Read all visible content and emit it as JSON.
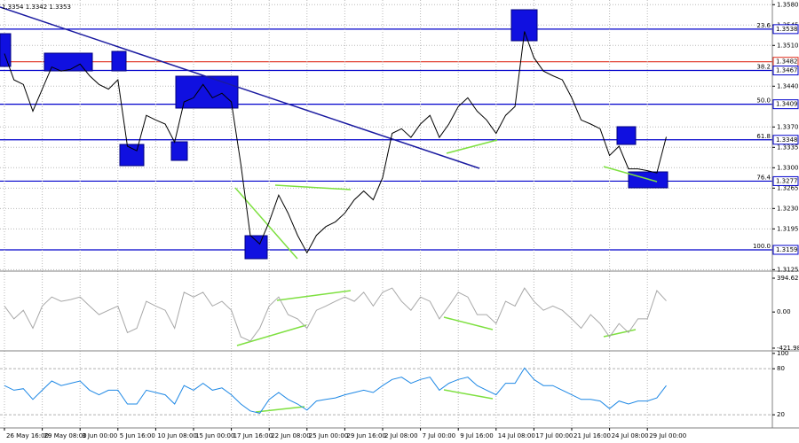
{
  "header": {
    "quote": "1.3354 1.3342 1.3353"
  },
  "chart_data": [
    {
      "type": "line",
      "color": "#000000",
      "values": [
        1.3496,
        1.3451,
        1.3443,
        1.3397,
        1.3435,
        1.3473,
        1.3466,
        1.3469,
        1.3478,
        1.3458,
        1.3443,
        1.3435,
        1.3451,
        1.3337,
        1.3329,
        1.339,
        1.3382,
        1.3375,
        1.3344,
        1.3413,
        1.342,
        1.3443,
        1.342,
        1.3428,
        1.3413,
        1.3306,
        1.3184,
        1.3169,
        1.3207,
        1.3253,
        1.3222,
        1.3184,
        1.3154,
        1.3184,
        1.3199,
        1.3207,
        1.3222,
        1.3245,
        1.326,
        1.3245,
        1.3283,
        1.3359,
        1.3367,
        1.3352,
        1.3375,
        1.339,
        1.3352,
        1.3375,
        1.3405,
        1.342,
        1.3397,
        1.3382,
        1.3359,
        1.339,
        1.3405,
        1.3534,
        1.3489,
        1.3466,
        1.3458,
        1.3451,
        1.342,
        1.3382,
        1.3375,
        1.3367,
        1.3321,
        1.3337,
        1.3298,
        1.3298,
        1.3295,
        1.3291,
        1.3353
      ],
      "ylim": [
        1.3124,
        1.3588
      ],
      "yticks": [
        {
          "value": 1.358,
          "label": "1.3580"
        },
        1.3545,
        {
          "value": 1.351,
          "label": "1.3510"
        },
        {
          "value": 1.344,
          "label": "1.3440"
        },
        {
          "value": 1.337,
          "label": "1.3370"
        },
        1.3335,
        {
          "value": 1.33,
          "label": "1.3300"
        },
        1.3265,
        {
          "value": 1.323,
          "label": "1.3230"
        },
        1.3195,
        1.3125
      ],
      "grid": true,
      "levels": [
        {
          "label": "23.6",
          "value": 1.3538,
          "color": "#0000cc"
        },
        {
          "value": 1.3482,
          "color": "#e03020"
        },
        {
          "label": "38.2",
          "value": 1.3467,
          "color": "#0000cc"
        },
        {
          "label": "50.0",
          "value": 1.3409,
          "color": "#0000cc"
        },
        {
          "label": "61.8",
          "value": 1.3348,
          "color": "#0000cc"
        },
        {
          "label": "76.4",
          "value": 1.3277,
          "color": "#0000cc"
        },
        {
          "label": "100.0",
          "value": 1.3159,
          "color": "#0000cc"
        }
      ]
    },
    {
      "type": "line",
      "color": "#a8a8a8",
      "values": [
        70,
        -80,
        20,
        -190,
        70,
        175,
        125,
        145,
        175,
        70,
        -30,
        20,
        70,
        -240,
        -190,
        125,
        70,
        20,
        -190,
        230,
        175,
        230,
        70,
        125,
        20,
        -290,
        -340,
        -190,
        70,
        175,
        -30,
        -80,
        -190,
        20,
        70,
        125,
        175,
        125,
        230,
        70,
        230,
        280,
        125,
        20,
        175,
        125,
        -80,
        70,
        230,
        175,
        -30,
        -30,
        -135,
        125,
        70,
        280,
        125,
        20,
        70,
        20,
        -80,
        -190,
        -30,
        -135,
        -290,
        -135,
        -240,
        -80,
        -80,
        250,
        130
      ],
      "ylim": [
        -443,
        436
      ],
      "yticks": [
        394.6289,
        {
          "value": 0,
          "label": "0.00"
        },
        -421.987
      ]
    },
    {
      "type": "line",
      "color": "#1e88e5",
      "values": [
        58,
        52,
        54,
        40,
        52,
        64,
        58,
        61,
        64,
        52,
        46,
        52,
        52,
        34,
        34,
        52,
        49,
        46,
        34,
        58,
        52,
        61,
        52,
        55,
        46,
        34,
        25,
        22,
        40,
        49,
        40,
        34,
        26,
        38,
        40,
        42,
        46,
        49,
        52,
        49,
        58,
        66,
        69,
        61,
        66,
        69,
        52,
        61,
        66,
        69,
        58,
        52,
        46,
        61,
        61,
        81,
        66,
        58,
        58,
        52,
        46,
        40,
        40,
        38,
        28,
        38,
        34,
        38,
        38,
        42,
        58
      ],
      "ylim": [
        4,
        101
      ],
      "yticks": [
        100,
        80,
        20
      ],
      "categories": [
        "26 May 16:00",
        null,
        null,
        null,
        "29 May 08:00",
        null,
        null,
        null,
        "3 Jun 00:00",
        null,
        null,
        null,
        "5 Jun 16:00",
        null,
        null,
        null,
        "10 Jun 08:00",
        null,
        null,
        null,
        "15 Jun 00:00",
        null,
        null,
        null,
        "17 Jun 16:00",
        null,
        null,
        null,
        "22 Jun 08:00",
        null,
        null,
        null,
        "25 Jun 00:00",
        null,
        null,
        null,
        "29 Jun 16:00",
        null,
        null,
        null,
        "2 Jul 08:00",
        null,
        null,
        null,
        "7 Jul 00:00",
        null,
        null,
        null,
        "9 Jul 16:00",
        null,
        null,
        null,
        "14 Jul 08:00",
        null,
        null,
        null,
        "17 Jul 00:00",
        null,
        null,
        null,
        "21 Jul 16:00",
        null,
        null,
        null,
        "24 Jul 08:00",
        null,
        null,
        null,
        "29 Jul 00:00",
        null,
        null
      ]
    }
  ]
}
